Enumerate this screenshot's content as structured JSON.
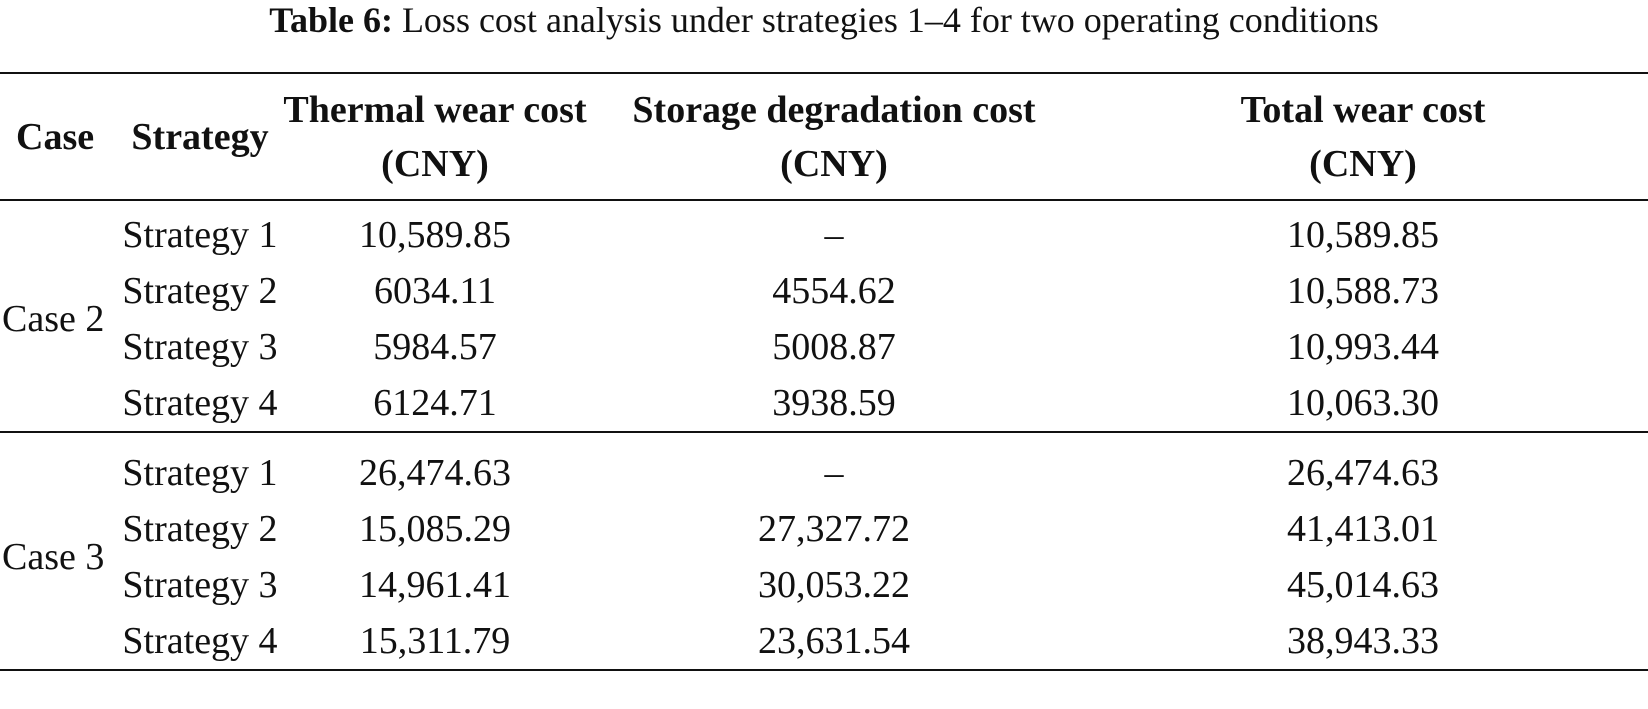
{
  "caption": {
    "label": "Table 6:",
    "text": "Loss cost analysis under strategies 1–4 for two operating conditions"
  },
  "headers": {
    "case": "Case",
    "strategy": "Strategy",
    "thermal_line1": "Thermal wear cost",
    "thermal_line2": "(CNY)",
    "storage_line1": "Storage degradation cost",
    "storage_line2": "(CNY)",
    "total_line1": "Total wear cost",
    "total_line2": "(CNY)"
  },
  "groups": [
    {
      "case": "Case 2",
      "rows": [
        {
          "strategy": "Strategy 1",
          "thermal": "10,589.85",
          "storage": "–",
          "total": "10,589.85"
        },
        {
          "strategy": "Strategy 2",
          "thermal": "6034.11",
          "storage": "4554.62",
          "total": "10,588.73"
        },
        {
          "strategy": "Strategy 3",
          "thermal": "5984.57",
          "storage": "5008.87",
          "total": "10,993.44"
        },
        {
          "strategy": "Strategy 4",
          "thermal": "6124.71",
          "storage": "3938.59",
          "total": "10,063.30"
        }
      ]
    },
    {
      "case": "Case 3",
      "rows": [
        {
          "strategy": "Strategy 1",
          "thermal": "26,474.63",
          "storage": "–",
          "total": "26,474.63"
        },
        {
          "strategy": "Strategy 2",
          "thermal": "15,085.29",
          "storage": "27,327.72",
          "total": "41,413.01"
        },
        {
          "strategy": "Strategy 3",
          "thermal": "14,961.41",
          "storage": "30,053.22",
          "total": "45,014.63"
        },
        {
          "strategy": "Strategy 4",
          "thermal": "15,311.79",
          "storage": "23,631.54",
          "total": "38,943.33"
        }
      ]
    }
  ]
}
